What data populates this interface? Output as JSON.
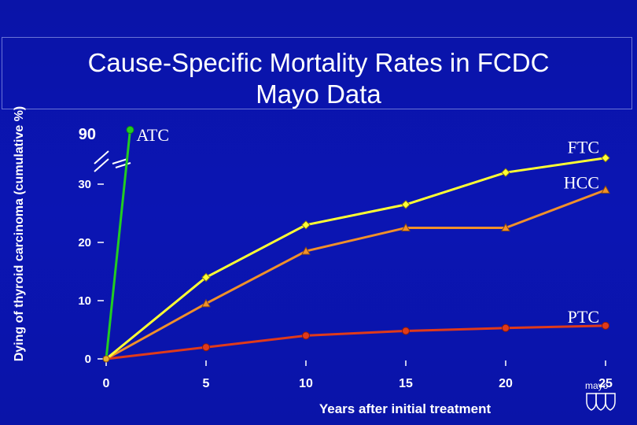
{
  "title_line1": "Cause-Specific Mortality Rates in FCDC",
  "title_line2": "Mayo Data",
  "logo_text": "mayo",
  "chart_data": {
    "type": "line",
    "title": "Cause-Specific Mortality Rates in FCDC Mayo Data",
    "xlabel": "Years after initial treatment",
    "ylabel": "Dying of thyroid carcinoma (cumulative %)",
    "x_ticks": [
      0,
      5,
      10,
      15,
      20,
      25
    ],
    "y_ticks": [
      0,
      10,
      20,
      30,
      90
    ],
    "y_axis_break": "between 30 and 90",
    "xlim": [
      0,
      25
    ],
    "grid": false,
    "series": [
      {
        "name": "ATC",
        "color": "#22cc22",
        "x": [
          0,
          1.2
        ],
        "y": [
          0,
          90
        ]
      },
      {
        "name": "FTC",
        "color": "#ffff33",
        "x": [
          0,
          5,
          10,
          15,
          20,
          25
        ],
        "y": [
          0,
          14,
          23,
          26.5,
          32,
          34.5
        ]
      },
      {
        "name": "HCC",
        "color": "#f0902a",
        "x": [
          0,
          5,
          10,
          15,
          20,
          25
        ],
        "y": [
          0,
          9.5,
          18.5,
          22.5,
          22.5,
          29
        ]
      },
      {
        "name": "PTC",
        "color": "#e03a1a",
        "x": [
          0,
          5,
          10,
          15,
          20,
          25
        ],
        "y": [
          0,
          2,
          4,
          4.8,
          5.3,
          5.7
        ]
      }
    ]
  }
}
